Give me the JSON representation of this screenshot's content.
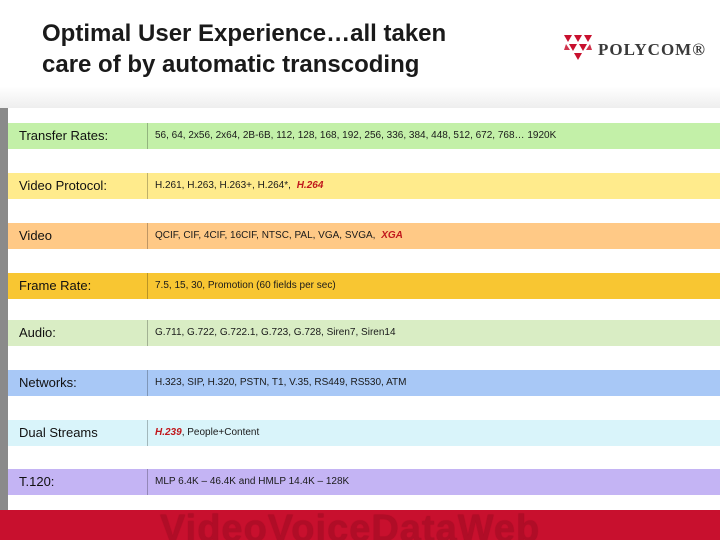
{
  "title_lines": [
    "Optimal User Experience…all taken",
    "care of by automatic transcoding"
  ],
  "logo": {
    "text": "POLYCOM®",
    "icon": "polycom-triangles-icon",
    "color": "#c8102e"
  },
  "rows": [
    {
      "label": "Transfer Rates:",
      "value": "56, 64, 2x56, 2x64, 2B-6B, 112, 128, 168, 192, 256, 336, 384, 448, 512, 672, 768… 1920K",
      "highlight": "",
      "color": "#c3f0a8"
    },
    {
      "label": "Video Protocol:",
      "value": "H.261, H.263, H.263+, H.264*,",
      "highlight": "H.264",
      "color": "#ffeb8c"
    },
    {
      "label": "Video",
      "value": "QCIF, CIF, 4CIF, 16CIF, NTSC, PAL, VGA, SVGA,",
      "highlight": "XGA",
      "color": "#ffc986"
    },
    {
      "label": "Frame Rate:",
      "value": "7.5, 15, 30, Promotion (60 fields per sec)",
      "highlight": "",
      "color": "#f8c632"
    },
    {
      "label": "Audio:",
      "value": "G.711, G.722, G.722.1, G.723, G.728, Siren7, Siren14",
      "highlight": "",
      "color": "#d9edc4"
    },
    {
      "label": "Networks:",
      "value": "H.323, SIP, H.320, PSTN, T1, V.35, RS449, RS530, ATM",
      "highlight": "",
      "color": "#a8c8f6"
    },
    {
      "label": "Dual Streams",
      "value": ", People+Content",
      "highlight": "H.239",
      "highlight_first": true,
      "color": "#d9f4fa"
    },
    {
      "label": "T.120:",
      "value": "MLP 6.4K – 46.4K and HMLP 14.4K – 128K",
      "highlight": "",
      "color": "#c4b4f4"
    }
  ],
  "footer": {
    "text": "VideoVoiceDataWeb",
    "color": "#c8102e"
  }
}
